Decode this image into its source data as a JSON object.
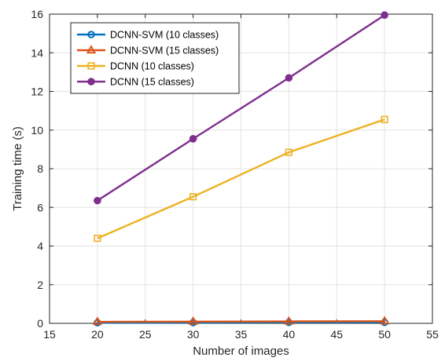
{
  "chart_data": {
    "type": "line",
    "title": "",
    "xlabel": "Number of images",
    "ylabel": "Training time (s)",
    "xlim": [
      15,
      55
    ],
    "ylim": [
      0,
      16
    ],
    "xticks": [
      15,
      20,
      25,
      30,
      35,
      40,
      45,
      50,
      55
    ],
    "yticks": [
      0,
      2,
      4,
      6,
      8,
      10,
      12,
      14,
      16
    ],
    "grid": true,
    "legend_position": "top-left",
    "x": [
      20,
      30,
      40,
      50
    ],
    "series": [
      {
        "name": "DCNN-SVM (10 classes)",
        "values": [
          0.03,
          0.04,
          0.05,
          0.05
        ],
        "color": "#0072BD",
        "marker": "circle"
      },
      {
        "name": "DCNN-SVM (15 classes)",
        "values": [
          0.08,
          0.09,
          0.1,
          0.11
        ],
        "color": "#D95319",
        "marker": "triangle"
      },
      {
        "name": "DCNN (10 classes)",
        "values": [
          4.4,
          6.55,
          8.85,
          10.55
        ],
        "color": "#EDB120",
        "marker": "square"
      },
      {
        "name": "DCNN (15 classes)",
        "values": [
          6.35,
          9.55,
          12.7,
          15.95
        ],
        "color": "#7E2F8E",
        "marker": "circle"
      }
    ]
  }
}
